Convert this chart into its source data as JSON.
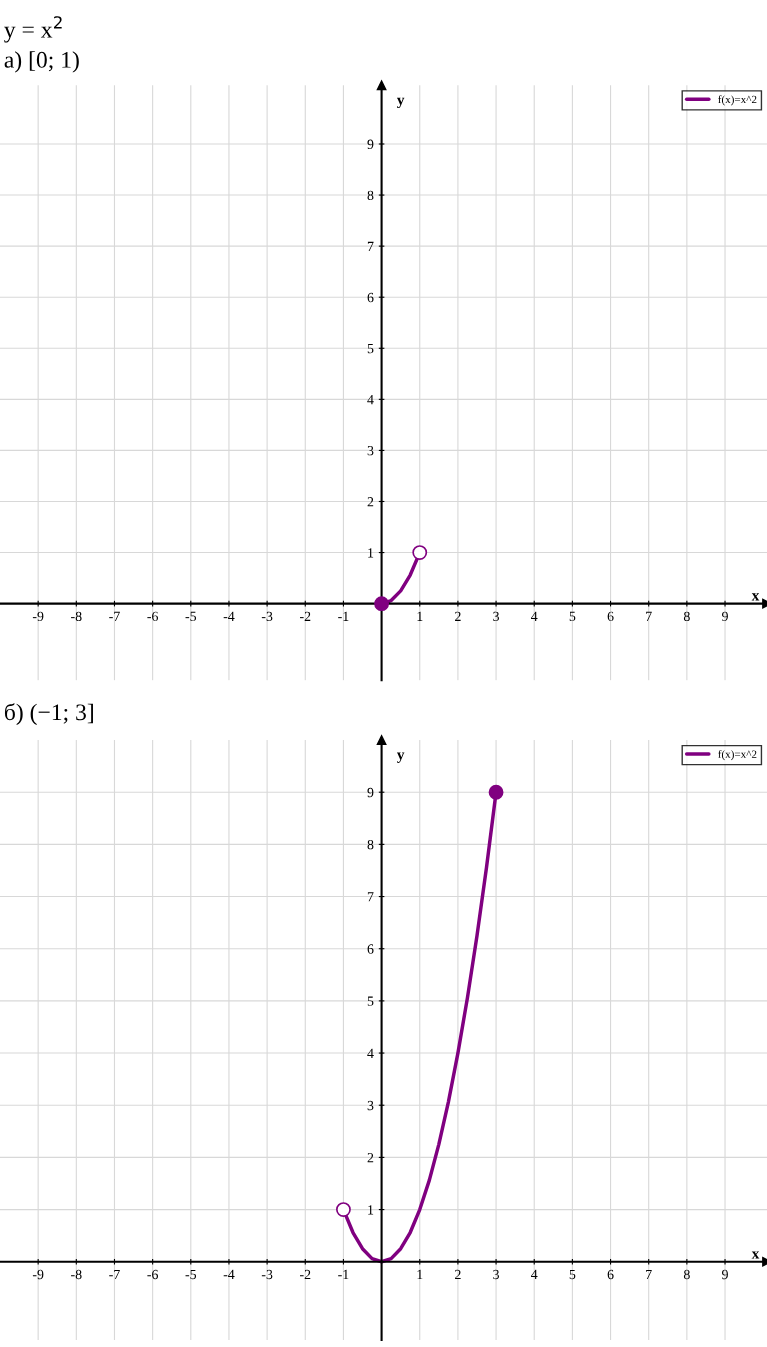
{
  "chart_data": [
    {
      "type": "line",
      "title": "y = x$^{2}$",
      "subtitle": "а) [0; 1)",
      "xlabel": "x",
      "ylabel": "y",
      "xlim": [
        -10,
        10.1
      ],
      "ylim": [
        -1.5,
        10.15
      ],
      "xticks": [
        -9,
        -8,
        -7,
        -6,
        -5,
        -4,
        -3,
        -2,
        -1,
        1,
        2,
        3,
        4,
        5,
        6,
        7,
        8,
        9
      ],
      "yticks": [
        1,
        2,
        3,
        4,
        5,
        6,
        7,
        8,
        9
      ],
      "grid": true,
      "legend": "top right",
      "series": [
        {
          "name": "f(x)=x^2",
          "type": "line",
          "color": "#800080",
          "x": [
            0,
            0.25,
            0.5,
            0.75,
            1
          ],
          "values": [
            0,
            0.06,
            0.25,
            0.56,
            1
          ]
        },
        {
          "type": "scatter",
          "marker": "circle",
          "color": "#800080",
          "x": [
            0
          ],
          "values": [
            0
          ]
        },
        {
          "type": "scatter",
          "marker": "circle",
          "color": "#ffffff",
          "x": [
            1
          ],
          "values": [
            1
          ]
        }
      ]
    },
    {
      "type": "line",
      "title": "б) (−1; 3]",
      "xlabel": "x",
      "ylabel": "y",
      "xlim": [
        -10,
        10.1
      ],
      "ylim": [
        -1.5,
        10.0
      ],
      "xticks": [
        -9,
        -8,
        -7,
        -6,
        -5,
        -4,
        -3,
        -2,
        -1,
        1,
        2,
        3,
        4,
        5,
        6,
        7,
        8,
        9
      ],
      "yticks": [
        1,
        2,
        3,
        4,
        5,
        6,
        7,
        8,
        9
      ],
      "grid": true,
      "legend": "top right",
      "series": [
        {
          "name": "f(x)=x^2",
          "type": "line",
          "color": "#800080",
          "x": [
            -1,
            -0.75,
            -0.5,
            -0.25,
            0,
            0.25,
            0.5,
            0.75,
            1,
            1.25,
            1.5,
            1.75,
            2,
            2.25,
            2.5,
            2.75,
            3
          ],
          "values": [
            1,
            0.56,
            0.25,
            0.06,
            0,
            0.06,
            0.25,
            0.56,
            1,
            1.56,
            2.25,
            3.06,
            4,
            5.06,
            6.25,
            7.56,
            9
          ]
        },
        {
          "type": "scatter",
          "marker": "circle",
          "color": "#ffffff",
          "x": [
            -1
          ],
          "values": [
            1
          ]
        },
        {
          "type": "scatter",
          "marker": "circle",
          "color": "#800080",
          "x": [
            3
          ],
          "values": [
            9
          ]
        }
      ]
    }
  ]
}
